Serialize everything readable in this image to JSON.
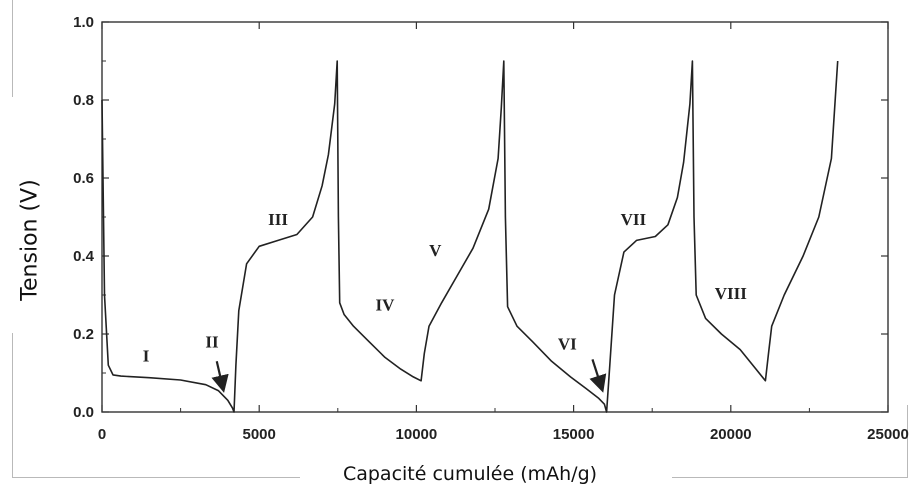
{
  "chart_data": {
    "type": "line",
    "xlabel": "Capacité cumulée (mAh/g)",
    "ylabel": "Tension (V)",
    "xlim": [
      0,
      25000
    ],
    "ylim": [
      0,
      1.0
    ],
    "x_ticks": [
      0,
      5000,
      10000,
      15000,
      20000,
      25000
    ],
    "x_tick_labels": [
      "0",
      "5000",
      "10000",
      "15000",
      "20000",
      "25000"
    ],
    "y_ticks": [
      0,
      0.2,
      0.4,
      0.6,
      0.8,
      1.0
    ],
    "y_tick_labels": [
      "0.0",
      "0.2",
      "0.4",
      "0.6",
      "0.8",
      "1.0"
    ],
    "grid": false,
    "series": [
      {
        "x": [
          0,
          80,
          200,
          350,
          600,
          1500,
          2500,
          3300,
          3700,
          4000,
          4150,
          4200,
          4260,
          4350,
          4600,
          5000,
          5600,
          6200,
          6700,
          7000,
          7200,
          7400,
          7480,
          7520,
          7560,
          7700,
          8000,
          8500,
          9000,
          9500,
          9900,
          10150,
          10250,
          10400,
          10800,
          11300,
          11800,
          12300,
          12600,
          12700,
          12780,
          12830,
          12900,
          13200,
          13700,
          14300,
          14900,
          15400,
          15800,
          15980,
          16050,
          16150,
          16300,
          16600,
          17000,
          17600,
          18000,
          18300,
          18500,
          18700,
          18780,
          18830,
          18900,
          19200,
          19700,
          20300,
          20800,
          21100,
          21200,
          21300,
          21700,
          22300,
          22800,
          23200,
          23400
        ],
        "y": [
          0.8,
          0.3,
          0.12,
          0.095,
          0.092,
          0.088,
          0.082,
          0.07,
          0.055,
          0.03,
          0.01,
          0.0,
          0.12,
          0.26,
          0.38,
          0.425,
          0.44,
          0.455,
          0.5,
          0.58,
          0.66,
          0.79,
          0.9,
          0.5,
          0.28,
          0.25,
          0.22,
          0.18,
          0.14,
          0.11,
          0.09,
          0.08,
          0.15,
          0.22,
          0.28,
          0.35,
          0.42,
          0.52,
          0.65,
          0.78,
          0.9,
          0.5,
          0.27,
          0.22,
          0.18,
          0.13,
          0.09,
          0.06,
          0.035,
          0.02,
          0.0,
          0.12,
          0.3,
          0.41,
          0.44,
          0.45,
          0.48,
          0.55,
          0.64,
          0.79,
          0.9,
          0.5,
          0.3,
          0.24,
          0.2,
          0.16,
          0.11,
          0.08,
          0.15,
          0.22,
          0.3,
          0.4,
          0.5,
          0.65,
          0.9
        ]
      }
    ],
    "annotations": [
      {
        "text": "I",
        "x": 1400,
        "y": 0.13
      },
      {
        "text": "II",
        "x": 3500,
        "y": 0.165
      },
      {
        "text": "III",
        "x": 5600,
        "y": 0.48
      },
      {
        "text": "IV",
        "x": 9000,
        "y": 0.26
      },
      {
        "text": "V",
        "x": 10600,
        "y": 0.4
      },
      {
        "text": "VI",
        "x": 14800,
        "y": 0.16
      },
      {
        "text": "VII",
        "x": 16900,
        "y": 0.48
      },
      {
        "text": "VIII",
        "x": 20000,
        "y": 0.29
      }
    ],
    "arrows": [
      {
        "from": [
          3650,
          0.13
        ],
        "to": [
          3850,
          0.06
        ]
      },
      {
        "from": [
          15600,
          0.135
        ],
        "to": [
          15900,
          0.06
        ]
      }
    ]
  }
}
